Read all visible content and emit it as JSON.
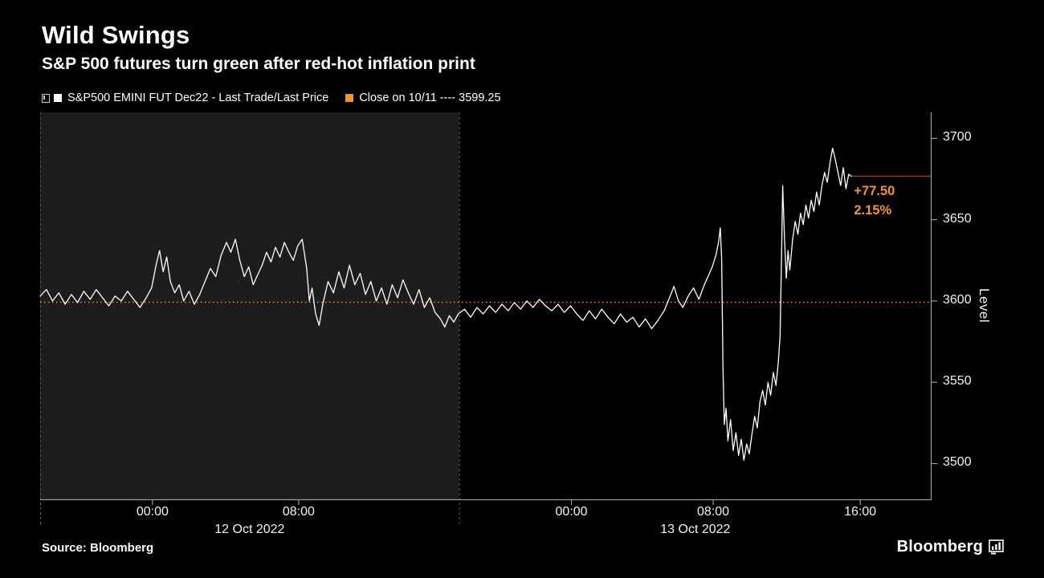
{
  "header": {
    "title": "Wild Swings",
    "subtitle": "S&P 500 futures turn green after red-hot inflation print"
  },
  "legend": {
    "series_label": "S&P500 EMINI FUT  Dec22 - Last Trade/Last Price",
    "close_label": "Close on 10/11 ---- 3599.25"
  },
  "annotation": {
    "net_change": "+77.50",
    "pct_change": "2.15%"
  },
  "footer": {
    "source": "Source:  Bloomberg",
    "logo_text": "Bloomberg"
  },
  "chart_data": {
    "type": "line",
    "title": "Wild Swings",
    "subtitle": "S&P 500 futures turn green after red-hot inflation print",
    "ylabel": "Level",
    "ylim": [
      3478,
      3716
    ],
    "y_ticks": [
      3700,
      3650,
      3600,
      3550,
      3500
    ],
    "grid": false,
    "legend_position": "top",
    "colors": {
      "line": "#ffffff",
      "accent_orange": "#f0942d",
      "last_price_line": "#a83d2e",
      "session_bg": "#1d1d1d",
      "axis": "#9b9b9b",
      "boundary": "#555555",
      "tick_text": "#f2f2f2"
    },
    "reference_lines": [
      {
        "label": "Close on 10/11",
        "value": 3599.25,
        "style": "dotted",
        "color_key": "accent_orange"
      },
      {
        "label": "Last price",
        "value": 3676.75,
        "style": "solid",
        "color_key": "last_price_line",
        "from_pct": 91.0,
        "to_pct": 100
      }
    ],
    "last": {
      "value": 3676.75,
      "net_change": "+77.50",
      "pct_change": "2.15%"
    },
    "sessions": [
      {
        "date": "12 Oct 2022",
        "range_pct": [
          0,
          47
        ],
        "shaded": true,
        "ticks": [
          {
            "pos_pct": 12.6,
            "label": "00:00"
          },
          {
            "pos_pct": 29.0,
            "label": "08:00"
          }
        ]
      },
      {
        "date": "13 Oct 2022",
        "range_pct": [
          47,
          100
        ],
        "shaded": false,
        "ticks": [
          {
            "pos_pct": 59.6,
            "label": "00:00"
          },
          {
            "pos_pct": 75.5,
            "label": "08:00"
          },
          {
            "pos_pct": 92.0,
            "label": "16:00"
          }
        ]
      }
    ],
    "series": [
      {
        "name": "S&P500 EMINI FUT Dec22 - Last Trade/Last Price",
        "color_key": "line",
        "points": [
          [
            0,
            3603
          ],
          [
            0.7,
            3607
          ],
          [
            1.4,
            3600
          ],
          [
            2.1,
            3605
          ],
          [
            2.8,
            3598
          ],
          [
            3.5,
            3604
          ],
          [
            4.2,
            3599
          ],
          [
            4.9,
            3606
          ],
          [
            5.6,
            3601
          ],
          [
            6.3,
            3607
          ],
          [
            7.0,
            3602
          ],
          [
            7.7,
            3597
          ],
          [
            8.4,
            3603
          ],
          [
            9.1,
            3600
          ],
          [
            9.8,
            3606
          ],
          [
            10.5,
            3601
          ],
          [
            11.2,
            3596
          ],
          [
            11.9,
            3602
          ],
          [
            12.5,
            3608
          ],
          [
            13.0,
            3622
          ],
          [
            13.4,
            3631
          ],
          [
            13.8,
            3618
          ],
          [
            14.2,
            3627
          ],
          [
            14.6,
            3612
          ],
          [
            15.1,
            3605
          ],
          [
            15.6,
            3610
          ],
          [
            16.1,
            3600
          ],
          [
            16.7,
            3606
          ],
          [
            17.3,
            3598
          ],
          [
            17.9,
            3604
          ],
          [
            18.5,
            3612
          ],
          [
            19.1,
            3620
          ],
          [
            19.7,
            3615
          ],
          [
            20.3,
            3628
          ],
          [
            20.9,
            3636
          ],
          [
            21.4,
            3630
          ],
          [
            21.9,
            3638
          ],
          [
            22.4,
            3625
          ],
          [
            22.9,
            3615
          ],
          [
            23.4,
            3621
          ],
          [
            23.9,
            3610
          ],
          [
            24.4,
            3616
          ],
          [
            24.9,
            3622
          ],
          [
            25.4,
            3630
          ],
          [
            25.9,
            3624
          ],
          [
            26.4,
            3633
          ],
          [
            26.9,
            3627
          ],
          [
            27.4,
            3636
          ],
          [
            27.9,
            3630
          ],
          [
            28.4,
            3625
          ],
          [
            28.9,
            3634
          ],
          [
            29.4,
            3638
          ],
          [
            29.9,
            3620
          ],
          [
            30.2,
            3600
          ],
          [
            30.5,
            3608
          ],
          [
            30.9,
            3592
          ],
          [
            31.3,
            3585
          ],
          [
            31.7,
            3598
          ],
          [
            32.3,
            3612
          ],
          [
            32.9,
            3605
          ],
          [
            33.5,
            3618
          ],
          [
            34.1,
            3608
          ],
          [
            34.7,
            3622
          ],
          [
            35.3,
            3610
          ],
          [
            35.9,
            3617
          ],
          [
            36.5,
            3604
          ],
          [
            37.1,
            3612
          ],
          [
            37.7,
            3600
          ],
          [
            38.3,
            3608
          ],
          [
            38.9,
            3598
          ],
          [
            39.5,
            3610
          ],
          [
            40.1,
            3602
          ],
          [
            40.7,
            3613
          ],
          [
            41.3,
            3605
          ],
          [
            41.9,
            3598
          ],
          [
            42.5,
            3607
          ],
          [
            43.1,
            3596
          ],
          [
            43.7,
            3602
          ],
          [
            44.3,
            3593
          ],
          [
            44.9,
            3589
          ],
          [
            45.4,
            3584
          ],
          [
            45.9,
            3591
          ],
          [
            46.4,
            3587
          ],
          [
            46.9,
            3592
          ],
          [
            47.6,
            3595
          ],
          [
            48.3,
            3590
          ],
          [
            49.0,
            3596
          ],
          [
            49.7,
            3592
          ],
          [
            50.4,
            3597
          ],
          [
            51.1,
            3593
          ],
          [
            51.8,
            3598
          ],
          [
            52.5,
            3594
          ],
          [
            53.2,
            3599
          ],
          [
            53.9,
            3595
          ],
          [
            54.6,
            3600
          ],
          [
            55.3,
            3596
          ],
          [
            56.0,
            3601
          ],
          [
            56.7,
            3597
          ],
          [
            57.4,
            3594
          ],
          [
            58.1,
            3598
          ],
          [
            58.8,
            3593
          ],
          [
            59.5,
            3597
          ],
          [
            60.2,
            3592
          ],
          [
            60.9,
            3588
          ],
          [
            61.6,
            3594
          ],
          [
            62.3,
            3589
          ],
          [
            63.0,
            3595
          ],
          [
            63.7,
            3590
          ],
          [
            64.4,
            3586
          ],
          [
            65.1,
            3592
          ],
          [
            65.8,
            3587
          ],
          [
            66.5,
            3590
          ],
          [
            67.2,
            3584
          ],
          [
            67.9,
            3589
          ],
          [
            68.6,
            3583
          ],
          [
            69.3,
            3588
          ],
          [
            70.0,
            3594
          ],
          [
            70.6,
            3602
          ],
          [
            71.1,
            3609
          ],
          [
            71.6,
            3600
          ],
          [
            72.1,
            3596
          ],
          [
            72.7,
            3603
          ],
          [
            73.3,
            3608
          ],
          [
            73.9,
            3601
          ],
          [
            74.5,
            3610
          ],
          [
            75.0,
            3616
          ],
          [
            75.4,
            3621
          ],
          [
            75.8,
            3628
          ],
          [
            76.1,
            3636
          ],
          [
            76.3,
            3645
          ],
          [
            76.45,
            3626
          ],
          [
            76.6,
            3558
          ],
          [
            76.75,
            3524
          ],
          [
            76.95,
            3534
          ],
          [
            77.15,
            3514
          ],
          [
            77.45,
            3527
          ],
          [
            77.75,
            3508
          ],
          [
            78.05,
            3519
          ],
          [
            78.35,
            3505
          ],
          [
            78.65,
            3515
          ],
          [
            78.95,
            3502
          ],
          [
            79.25,
            3512
          ],
          [
            79.55,
            3506
          ],
          [
            79.85,
            3518
          ],
          [
            80.15,
            3529
          ],
          [
            80.45,
            3522
          ],
          [
            80.75,
            3538
          ],
          [
            81.05,
            3545
          ],
          [
            81.35,
            3536
          ],
          [
            81.65,
            3550
          ],
          [
            81.95,
            3542
          ],
          [
            82.25,
            3556
          ],
          [
            82.55,
            3548
          ],
          [
            82.8,
            3562
          ],
          [
            83.0,
            3578
          ],
          [
            83.15,
            3622
          ],
          [
            83.3,
            3671
          ],
          [
            83.5,
            3638
          ],
          [
            83.7,
            3614
          ],
          [
            83.9,
            3631
          ],
          [
            84.1,
            3619
          ],
          [
            84.4,
            3637
          ],
          [
            84.7,
            3649
          ],
          [
            85.0,
            3641
          ],
          [
            85.3,
            3654
          ],
          [
            85.6,
            3647
          ],
          [
            85.9,
            3659
          ],
          [
            86.2,
            3651
          ],
          [
            86.5,
            3662
          ],
          [
            86.8,
            3655
          ],
          [
            87.1,
            3667
          ],
          [
            87.4,
            3659
          ],
          [
            87.7,
            3671
          ],
          [
            88.0,
            3679
          ],
          [
            88.3,
            3673
          ],
          [
            88.6,
            3685
          ],
          [
            88.9,
            3694
          ],
          [
            89.2,
            3687
          ],
          [
            89.5,
            3679
          ],
          [
            89.8,
            3671
          ],
          [
            90.1,
            3682
          ],
          [
            90.4,
            3669
          ],
          [
            90.7,
            3678
          ],
          [
            91.0,
            3676.75
          ]
        ]
      }
    ]
  }
}
